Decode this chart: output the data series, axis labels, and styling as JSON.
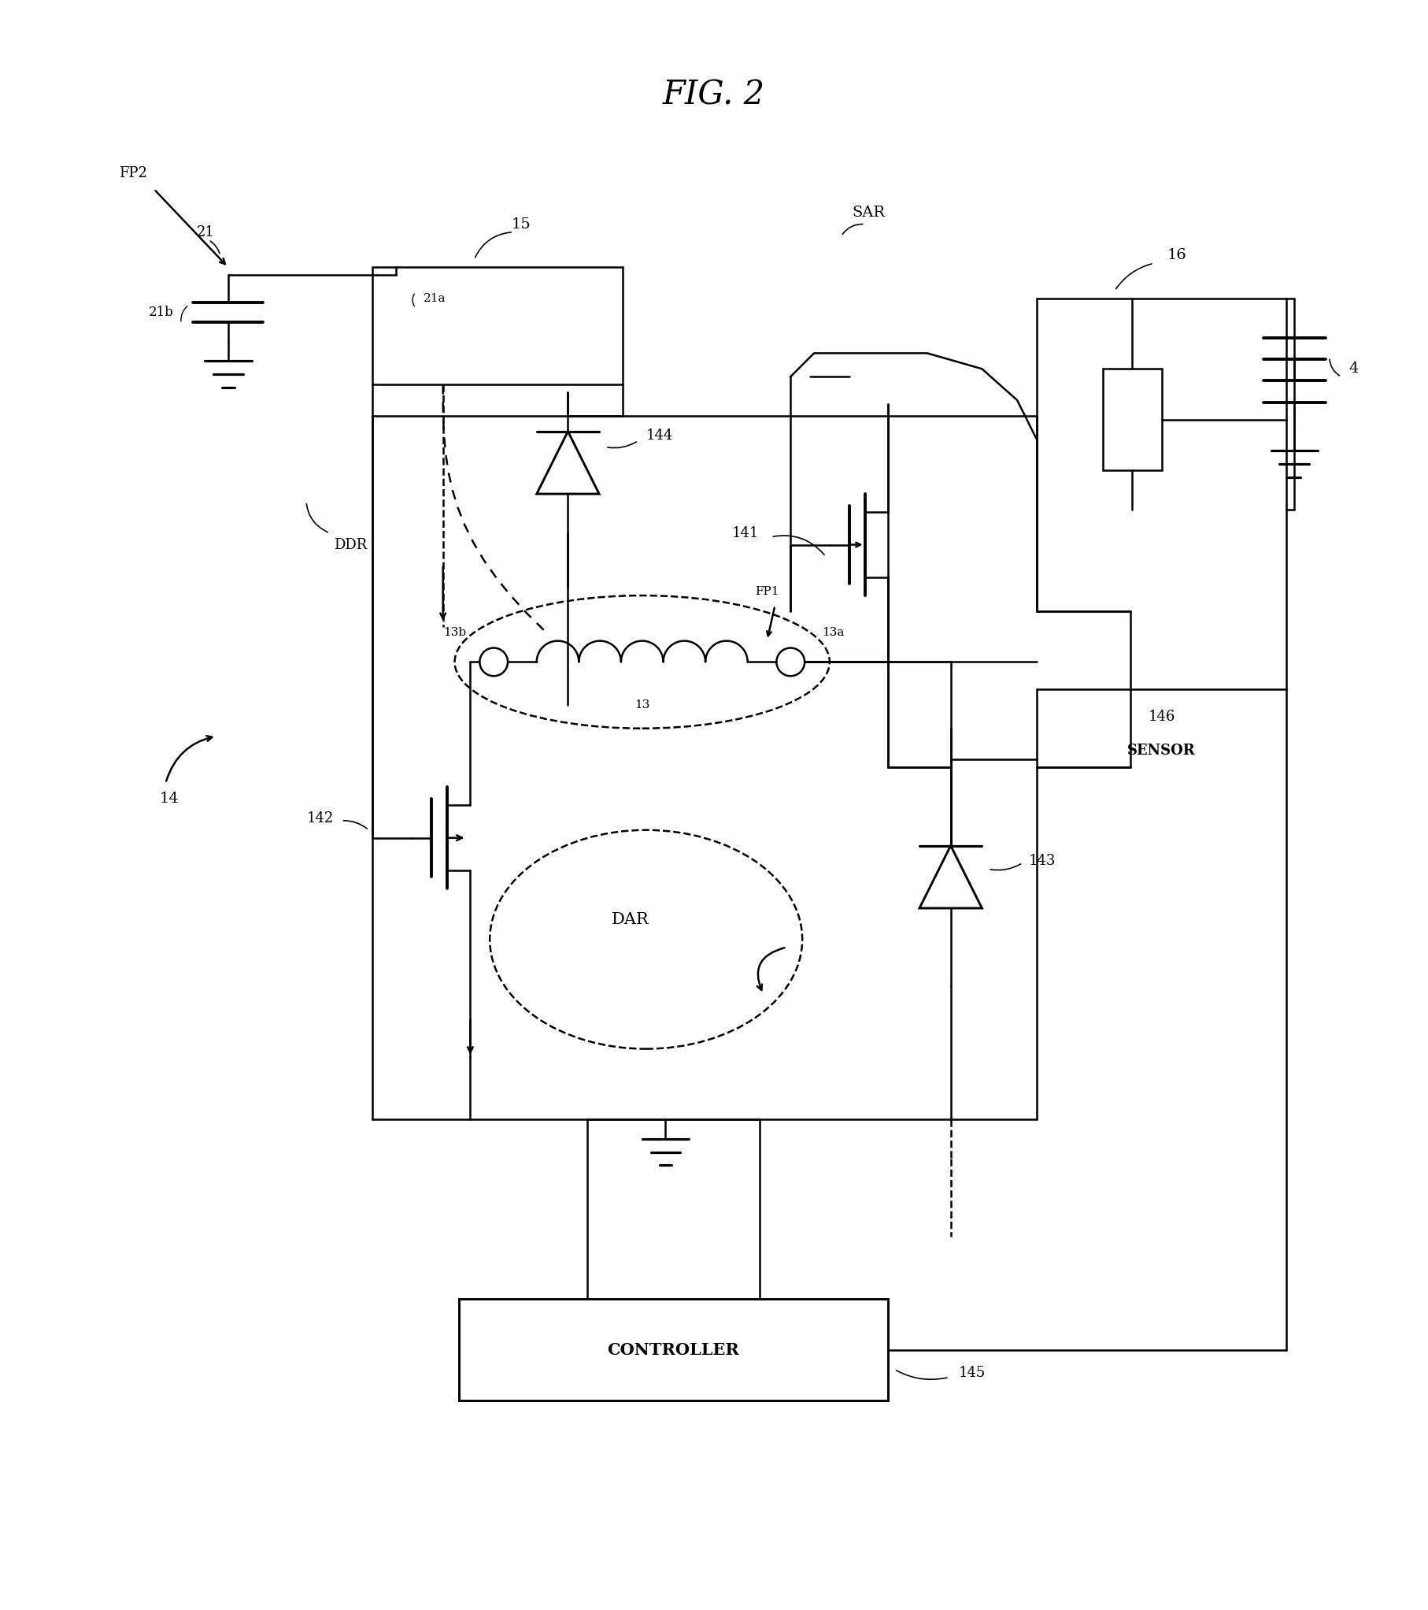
{
  "title": "FIG. 2",
  "bg": "#ffffff",
  "lc": "#000000",
  "lw": 1.8,
  "fig_w": 18.15,
  "fig_h": 20.44,
  "xlim": [
    0,
    18.15
  ],
  "ylim": [
    0,
    20.44
  ]
}
